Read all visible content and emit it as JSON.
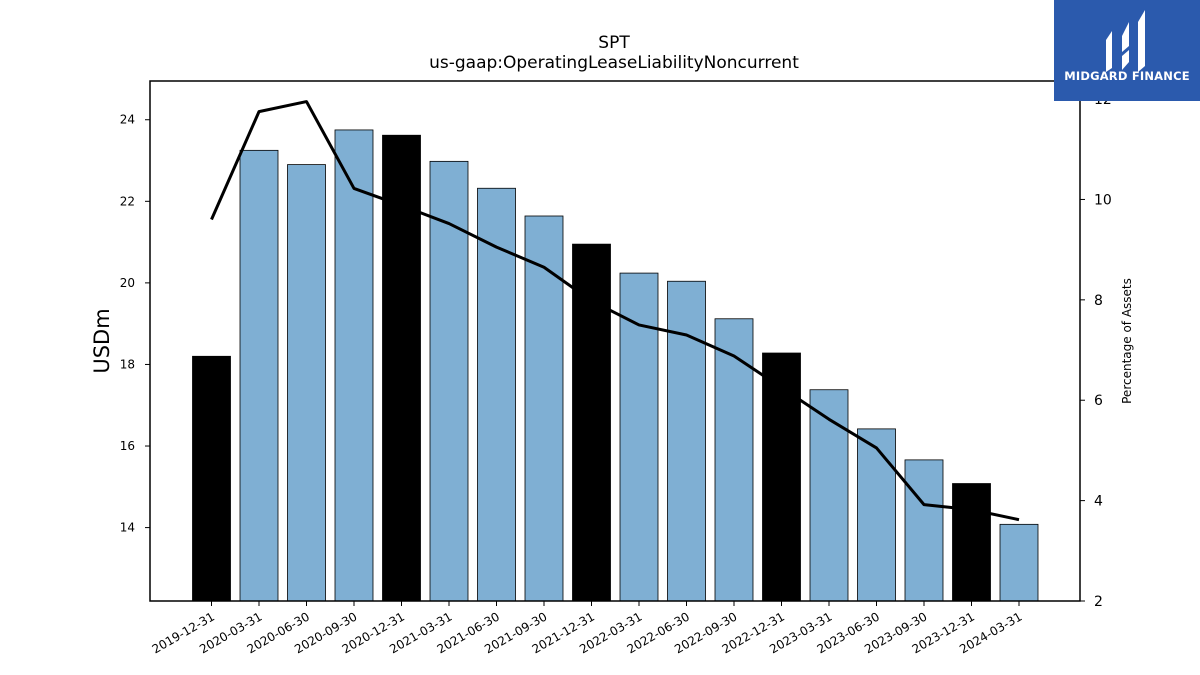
{
  "chart_data": {
    "type": "bar",
    "title": "SPT",
    "subtitle": "us-gaap:OperatingLeaseLiabilityNoncurrent",
    "ylabel": "USDm",
    "ylabel_right": "Percentage of Assets",
    "categories": [
      "2019-12-31",
      "2020-03-31",
      "2020-06-30",
      "2020-09-30",
      "2020-12-31",
      "2021-03-31",
      "2021-06-30",
      "2021-09-30",
      "2021-12-31",
      "2022-03-31",
      "2022-06-30",
      "2022-09-30",
      "2022-12-31",
      "2023-03-31",
      "2023-06-30",
      "2023-09-30",
      "2023-12-31",
      "2024-03-31"
    ],
    "series": [
      {
        "values": [
          18.2,
          23.25,
          22.9,
          23.75,
          23.62,
          22.98,
          22.32,
          21.64,
          20.95,
          20.24,
          20.04,
          19.12,
          18.28,
          17.38,
          16.42,
          15.66,
          15.08,
          14.08
        ],
        "bar_colors": [
          "#000000",
          "#7fafd3",
          "#7fafd3",
          "#7fafd3",
          "#000000",
          "#7fafd3",
          "#7fafd3",
          "#7fafd3",
          "#000000",
          "#7fafd3",
          "#7fafd3",
          "#7fafd3",
          "#000000",
          "#7fafd3",
          "#7fafd3",
          "#7fafd3",
          "#000000",
          "#7fafd3"
        ]
      },
      {
        "axis": "right",
        "values": [
          9.6,
          11.75,
          11.95,
          10.22,
          9.88,
          9.52,
          9.05,
          8.65,
          7.98,
          7.5,
          7.3,
          6.88,
          6.25,
          5.62,
          5.05,
          3.92,
          3.82,
          3.62
        ],
        "color": "#000000"
      }
    ],
    "ylim": [
      12.2,
      24.95
    ],
    "yticks": [
      14,
      16,
      18,
      20,
      22,
      24
    ],
    "ylim_right": [
      2,
      12.36
    ],
    "yticks_right": [
      2,
      4,
      6,
      8,
      10,
      12
    ],
    "grid": false,
    "legend": "none"
  },
  "logo": {
    "text": "MIDGARD FINANCE",
    "bg_color": "#2b5aad"
  }
}
